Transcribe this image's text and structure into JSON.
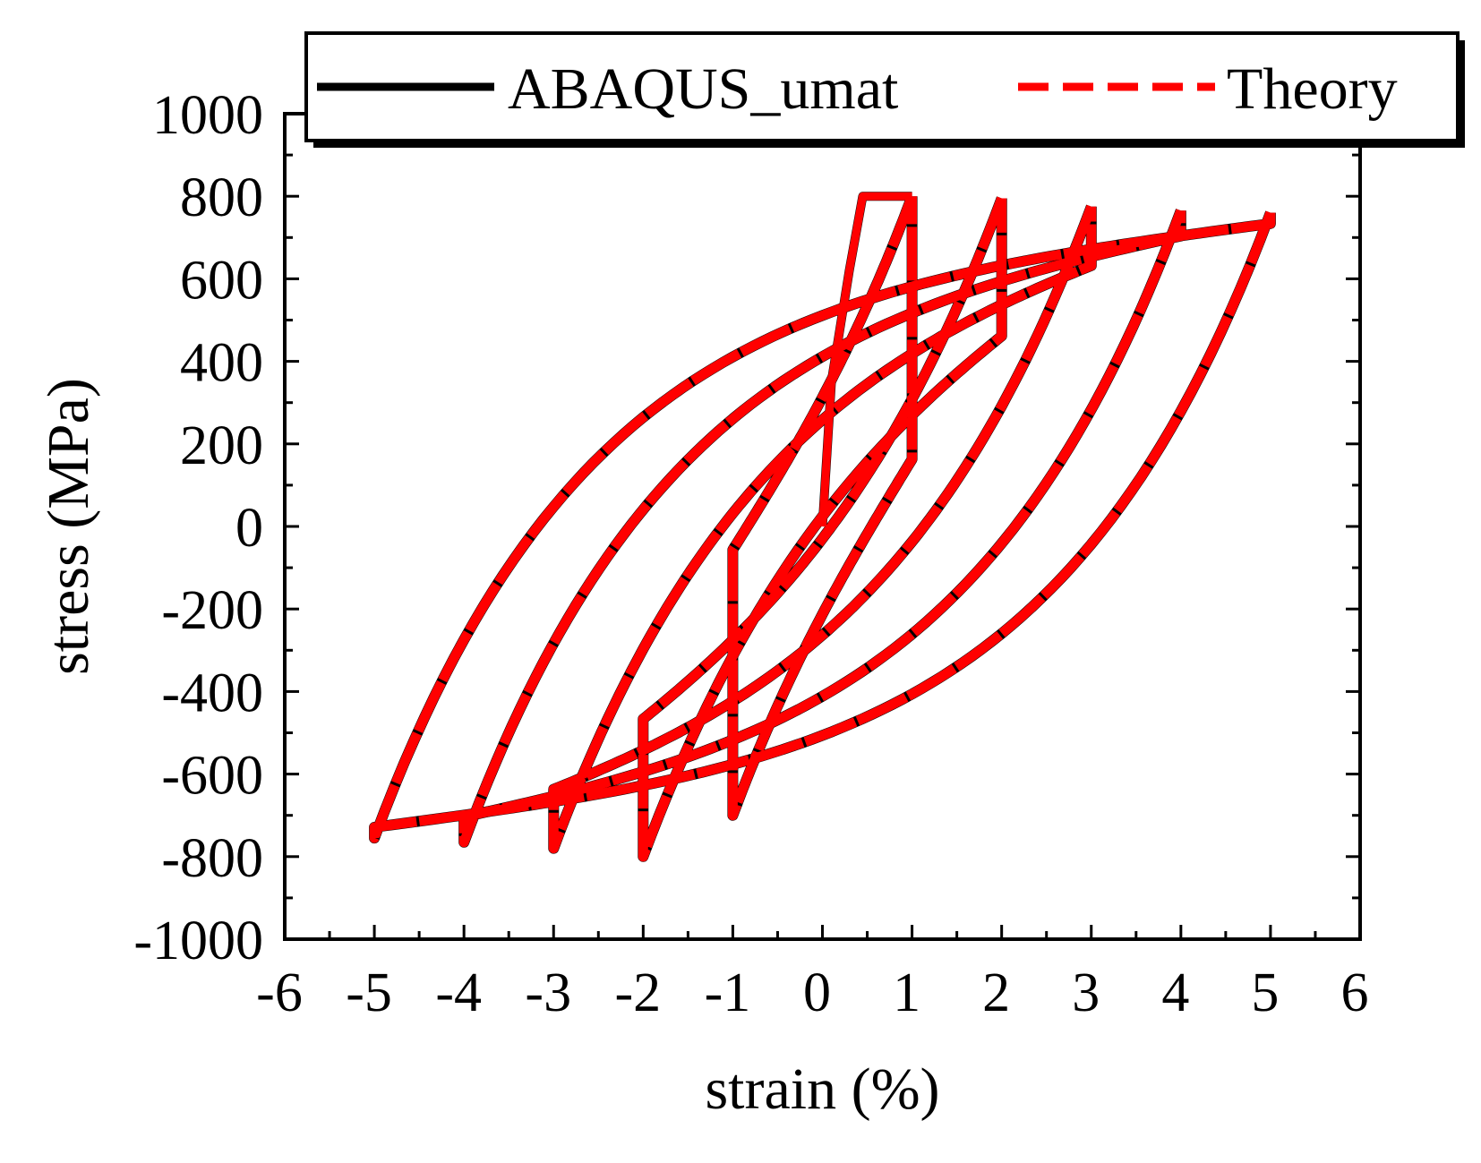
{
  "chart_data": {
    "type": "line",
    "title": "",
    "xlabel": "strain (%)",
    "ylabel": "stress (MPa)",
    "xlim": [
      -6,
      6
    ],
    "ylim": [
      -1000,
      1000
    ],
    "xticks": [
      -6,
      -5,
      -4,
      -3,
      -2,
      -1,
      0,
      1,
      2,
      3,
      4,
      5,
      6
    ],
    "yticks": [
      -1000,
      -800,
      -600,
      -400,
      -200,
      0,
      200,
      400,
      600,
      800,
      1000
    ],
    "grid": false,
    "legend": {
      "placement": "top",
      "entries": [
        "ABAQUS_umat",
        "Theory"
      ]
    },
    "series": [
      {
        "name": "ABAQUS_umat",
        "color": "#000000",
        "style": "solid",
        "amplitudes": [
          1,
          2,
          3,
          4,
          5
        ]
      },
      {
        "name": "Theory",
        "color": "#ff0000",
        "style": "dashed",
        "amplitudes": [
          1,
          2,
          3,
          4,
          5
        ]
      }
    ],
    "loops": [
      {
        "amplitude": 1,
        "peak_stress": 800,
        "valley_stress": -700
      },
      {
        "amplitude": 2,
        "peak_stress": 795,
        "valley_stress": -800
      },
      {
        "amplitude": 3,
        "peak_stress": 775,
        "valley_stress": -780
      },
      {
        "amplitude": 4,
        "peak_stress": 765,
        "valley_stress": -765
      },
      {
        "amplitude": 5,
        "peak_stress": 760,
        "valley_stress": -755
      }
    ],
    "initial_loading": [
      [
        0,
        0
      ],
      [
        0.1,
        350
      ],
      [
        0.3,
        620
      ],
      [
        0.45,
        800
      ],
      [
        1.0,
        800
      ]
    ]
  }
}
